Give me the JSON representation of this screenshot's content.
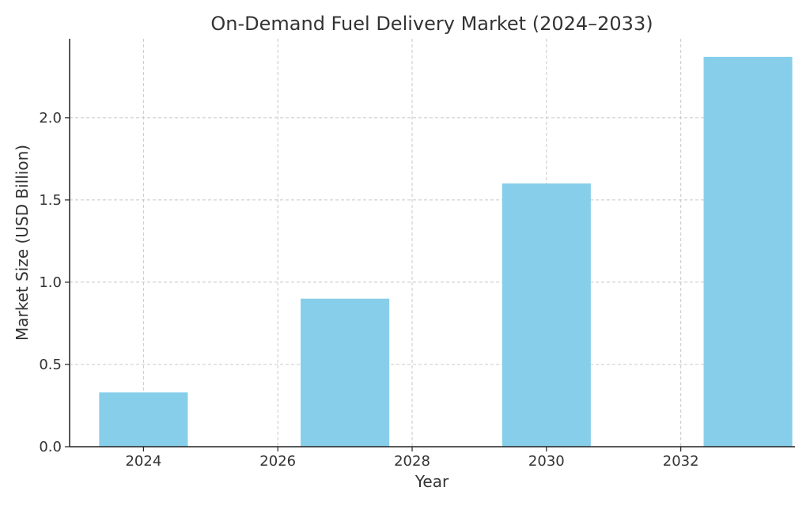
{
  "chart_data": {
    "type": "bar",
    "title": "On-Demand Fuel Delivery Market (2024–2033)",
    "xlabel": "Year",
    "ylabel": "Market Size (USD Billion)",
    "x": [
      2024,
      2027,
      2030,
      2033
    ],
    "values": [
      0.33,
      0.9,
      1.6,
      2.37
    ],
    "xlim": [
      2022.9,
      2033.7
    ],
    "ylim": [
      0,
      2.48
    ],
    "xticks": [
      2024,
      2026,
      2028,
      2030,
      2032
    ],
    "yticks": [
      0.0,
      0.5,
      1.0,
      1.5,
      2.0
    ],
    "xtick_labels": [
      "2024",
      "2026",
      "2028",
      "2030",
      "2032"
    ],
    "ytick_labels": [
      "0.0",
      "0.5",
      "1.0",
      "1.5",
      "2.0"
    ],
    "bar_color": "#87CEEB",
    "grid": true,
    "legend": null
  }
}
